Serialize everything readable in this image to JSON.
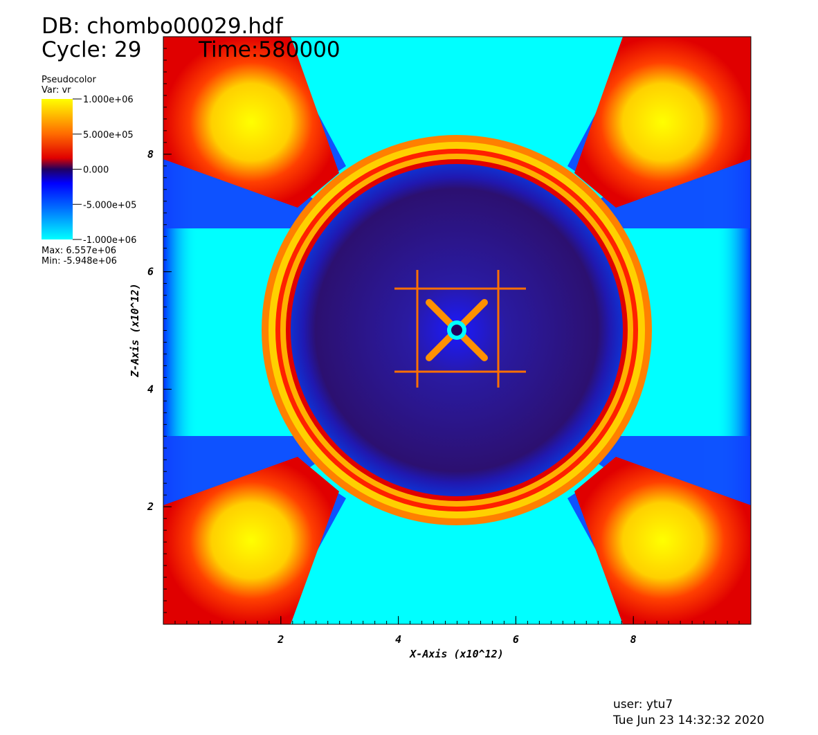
{
  "header": {
    "database": "DB: chombo00029.hdf",
    "cycle": "Cycle: 29",
    "time": "Time:580000"
  },
  "legend": {
    "plot": "Pseudocolor",
    "variable": "Var: vr",
    "labels": [
      "1.000e+06",
      "5.000e+05",
      "0.000",
      "-5.000e+05",
      "-1.000e+06"
    ],
    "max": "Max:  6.557e+06",
    "min": "Min: -5.948e+06"
  },
  "axes": {
    "x": {
      "title": "X-Axis (x10^12)",
      "range": [
        0,
        10
      ],
      "ticks": [
        2,
        4,
        6,
        8
      ]
    },
    "y": {
      "title": "Z-Axis (x10^12)",
      "range": [
        0,
        10
      ],
      "ticks": [
        2,
        4,
        6,
        8
      ]
    }
  },
  "footer": {
    "user": "user: ytu7",
    "date": "Tue Jun 23 14:32:32 2020"
  }
}
